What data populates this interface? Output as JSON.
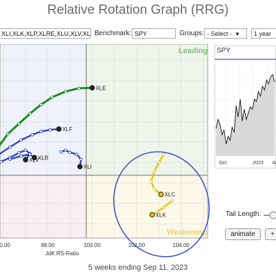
{
  "title": "Relative Rotation Graph (RRG)",
  "toolbar": {
    "symbols_value": "XLI,XLK,XLP,XLRE,XLU,XLV,XL",
    "benchmark_label": "Benchmark:",
    "benchmark_value": "SPY",
    "groups_label": "Groups:",
    "groups_value": "- Select -",
    "period_value": "1 year"
  },
  "quadrants": {
    "leading": "Leading",
    "weakening": "Weakening"
  },
  "chart_data": {
    "type": "scatter",
    "xlabel": "JdK RS-Ratio",
    "ylabel": "",
    "x_ticks": [
      "00.00",
      "98.00",
      "100.00",
      "102.00",
      "104.00"
    ],
    "xlim": [
      95.85,
      105.2
    ],
    "ylim": [
      97.15,
      101.9
    ],
    "center": [
      100,
      100
    ],
    "series": [
      {
        "name": "XLE",
        "color": "#1e8c1e",
        "x": [
          95.8,
          96.2,
          96.7,
          97.2,
          97.7,
          98.2,
          98.8,
          99.4,
          100.0
        ],
        "y": [
          99.4,
          99.7,
          99.95,
          100.2,
          100.42,
          100.6,
          100.74,
          100.82,
          100.83
        ],
        "label_pos": "right"
      },
      {
        "name": "XLF",
        "color": "#3344bb",
        "x": [
          95.8,
          96.3,
          96.8,
          97.3,
          97.7,
          98.1,
          98.5
        ],
        "y": [
          99.2,
          99.38,
          99.55,
          99.68,
          99.76,
          99.8,
          99.82
        ],
        "label_pos": "right"
      },
      {
        "name": "XLV",
        "color": "#3344bb",
        "x": [
          95.9,
          96.3,
          96.7,
          97.0,
          97.2,
          97.0
        ],
        "y": [
          99.02,
          99.12,
          99.24,
          99.3,
          99.22,
          99.07
        ],
        "label_pos": "right"
      },
      {
        "name": "XLB",
        "color": "#3344bb",
        "x": [
          96.3,
          96.8,
          97.2,
          97.4
        ],
        "y": [
          99.08,
          99.16,
          99.2,
          99.12
        ],
        "label_pos": "right"
      },
      {
        "name": "XLI",
        "color": "#3344bb",
        "x": [
          98.6,
          98.8,
          99.0,
          99.3,
          99.5,
          99.45
        ],
        "y": [
          99.26,
          99.3,
          99.25,
          99.2,
          99.08,
          98.9
        ],
        "label_pos": "right"
      },
      {
        "name": "XLC",
        "color": "#e8c200",
        "x": [
          103.2,
          103.0,
          102.8,
          102.65,
          102.8,
          103.1
        ],
        "y": [
          99.18,
          99.0,
          98.78,
          98.53,
          98.35,
          98.22
        ],
        "label_pos": "right"
      },
      {
        "name": "XLK",
        "color": "#e8c200",
        "x": [
          103.6,
          103.2,
          102.9,
          102.7
        ],
        "y": [
          98.06,
          97.9,
          97.78,
          97.72
        ],
        "label_pos": "right"
      }
    ],
    "highlight": "circle around XLC and XLK"
  },
  "spy_panel": {
    "symbol": "SPY",
    "x_ticks": [
      "Oct",
      "2023",
      "Apr"
    ],
    "values": [
      0.3,
      0.42,
      0.35,
      0.22,
      0.28,
      0.1,
      0.2,
      0.15,
      0.32,
      0.25,
      0.6,
      0.45,
      0.68,
      0.4,
      0.55,
      0.42,
      0.5,
      0.58,
      0.55,
      0.68,
      0.65,
      0.78,
      0.72,
      0.85,
      0.8,
      0.93,
      0.88,
      0.97,
      1.0,
      0.9
    ]
  },
  "tail_length_label": "Tail Length:",
  "animate_label": "animate",
  "plus_label": "+",
  "footer": "5 weeks ending Sep 11, 2023"
}
